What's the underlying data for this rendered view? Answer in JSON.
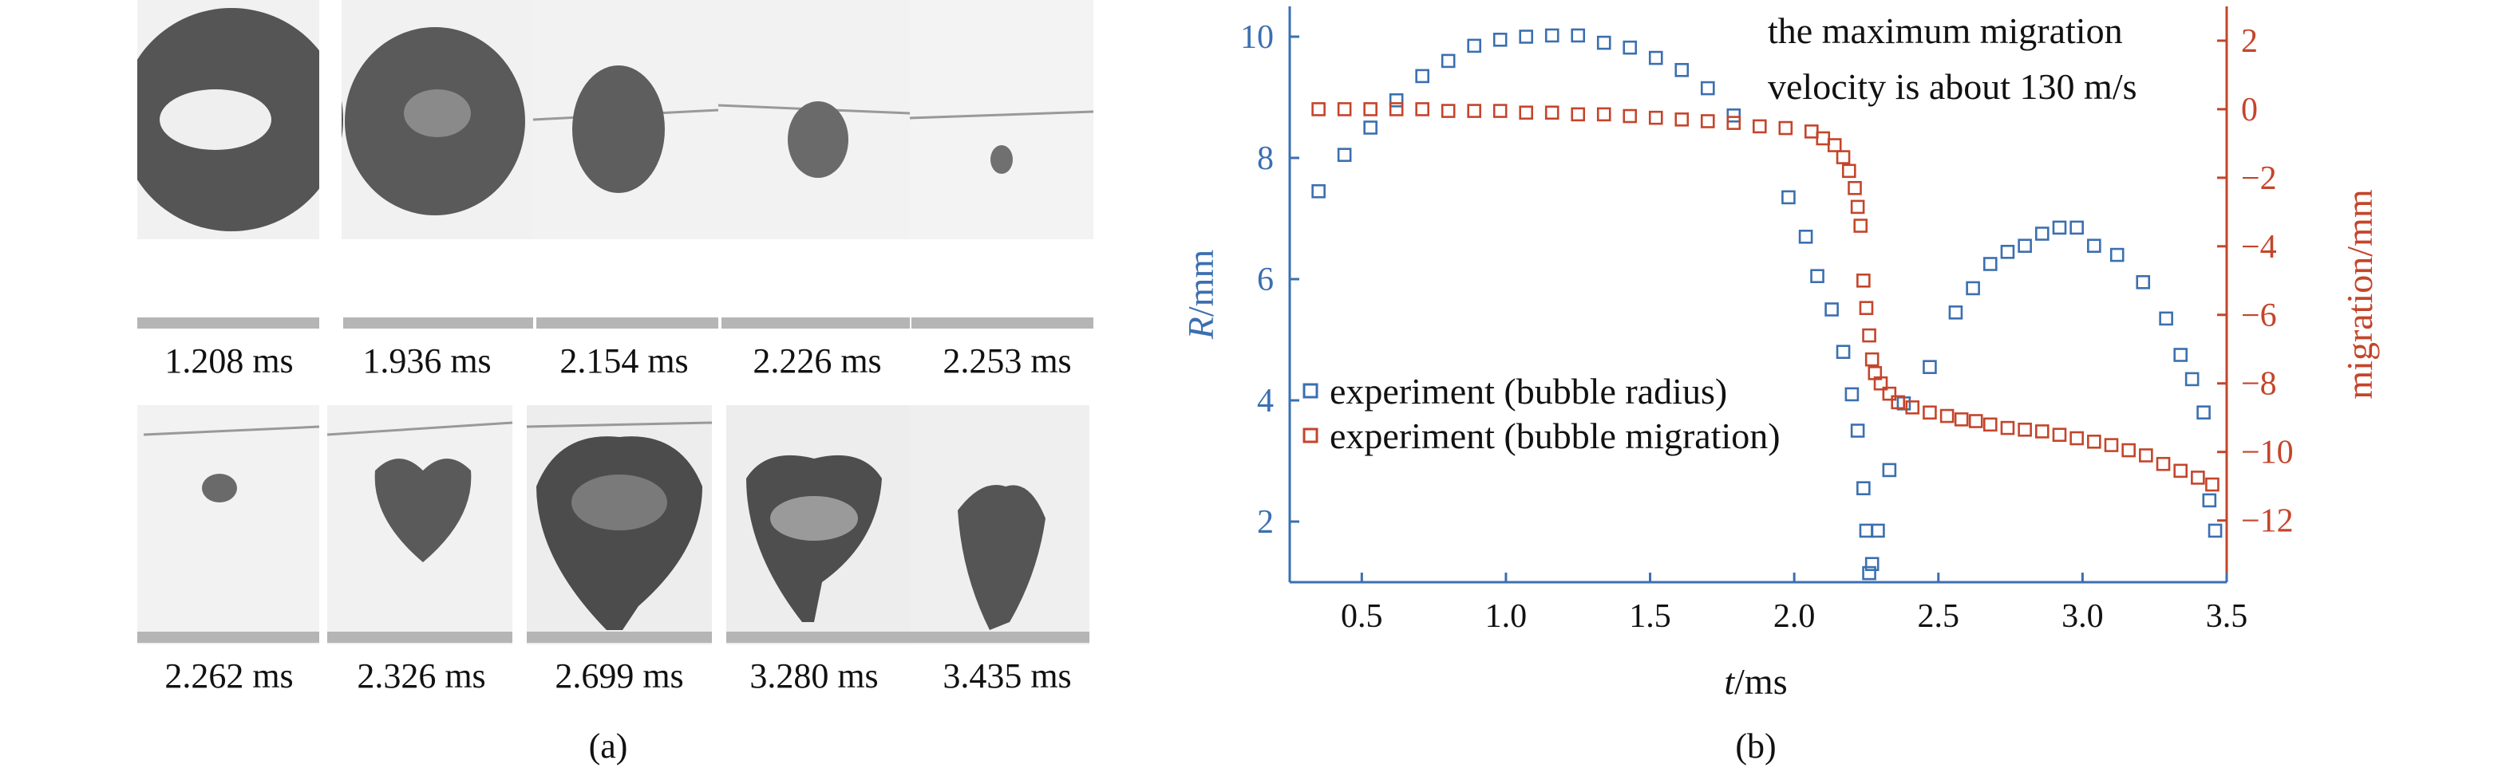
{
  "figure": {
    "panel_a_label": "(a)",
    "panel_b_label": "(b)",
    "frames_row1": [
      "1.208 ms",
      "1.936 ms",
      "2.154 ms",
      "2.226 ms",
      "2.253 ms"
    ],
    "frames_row2": [
      "2.262 ms",
      "2.326 ms",
      "2.699 ms",
      "3.280 ms",
      "3.435 ms"
    ]
  },
  "colors": {
    "radius": "#3b6fb0",
    "migration": "#c4452b",
    "frame_bg": "#f1f1f1",
    "bubble_dark": "#555555"
  },
  "chart_data": {
    "type": "scatter",
    "xlabel": "t/ms",
    "xlabel_italic": "t",
    "xlabel_unit": "/ms",
    "ylabel_left": "R/mm",
    "ylabel_left_italic": "R",
    "ylabel_left_unit": "/mm",
    "ylabel_right": "migration/mm",
    "xlim": [
      0.25,
      3.5
    ],
    "ylim_left": [
      1.0,
      10.5
    ],
    "ylim_right": [
      -13.8,
      3.0
    ],
    "x_ticks": [
      "0.5",
      "1.0",
      "1.5",
      "2.0",
      "2.5",
      "3.0",
      "3.5"
    ],
    "x_tick_values": [
      0.5,
      1.0,
      1.5,
      2.0,
      2.5,
      3.0,
      3.5
    ],
    "y_left_ticks": [
      "2",
      "4",
      "6",
      "8",
      "10"
    ],
    "y_left_tick_values": [
      2,
      4,
      6,
      8,
      10
    ],
    "y_right_ticks": [
      "2",
      "0",
      "−2",
      "−4",
      "−6",
      "−8",
      "−10",
      "−12"
    ],
    "y_right_tick_values": [
      2,
      0,
      -2,
      -4,
      -6,
      -8,
      -10,
      -12
    ],
    "annotation_lines": [
      "the maximum migration",
      "velocity is about 130 m/s"
    ],
    "legend_position": "middle-left",
    "series": [
      {
        "name": "experiment (bubble radius)",
        "axis": "left",
        "marker": "open-square",
        "x": [
          0.35,
          0.44,
          0.53,
          0.62,
          0.71,
          0.8,
          0.89,
          0.98,
          1.07,
          1.16,
          1.25,
          1.34,
          1.43,
          1.52,
          1.61,
          1.7,
          1.79,
          1.98,
          2.04,
          2.08,
          2.13,
          2.17,
          2.2,
          2.22,
          2.24,
          2.25,
          2.26,
          2.27,
          2.29,
          2.33,
          2.38,
          2.47,
          2.56,
          2.62,
          2.68,
          2.74,
          2.8,
          2.86,
          2.92,
          2.98,
          3.04,
          3.12,
          3.21,
          3.29,
          3.34,
          3.38,
          3.42,
          3.44,
          3.46
        ],
        "y": [
          7.45,
          8.05,
          8.5,
          8.95,
          9.35,
          9.6,
          9.85,
          9.95,
          10.0,
          10.02,
          10.02,
          9.9,
          9.82,
          9.65,
          9.45,
          9.15,
          8.7,
          7.35,
          6.7,
          6.05,
          5.5,
          4.8,
          4.1,
          3.5,
          2.55,
          1.85,
          1.15,
          1.3,
          1.85,
          2.85,
          3.95,
          4.55,
          5.45,
          5.85,
          6.25,
          6.45,
          6.55,
          6.75,
          6.85,
          6.85,
          6.55,
          6.4,
          5.95,
          5.35,
          4.75,
          4.35,
          3.8,
          2.35,
          1.85
        ]
      },
      {
        "name": "experiment (bubble migration)",
        "axis": "right",
        "marker": "open-square",
        "x": [
          0.35,
          0.44,
          0.53,
          0.62,
          0.71,
          0.8,
          0.89,
          0.98,
          1.07,
          1.16,
          1.25,
          1.34,
          1.43,
          1.52,
          1.61,
          1.7,
          1.79,
          1.88,
          1.97,
          2.06,
          2.1,
          2.14,
          2.17,
          2.19,
          2.21,
          2.22,
          2.23,
          2.24,
          2.25,
          2.26,
          2.27,
          2.28,
          2.3,
          2.33,
          2.36,
          2.41,
          2.47,
          2.53,
          2.58,
          2.63,
          2.68,
          2.74,
          2.8,
          2.86,
          2.92,
          2.98,
          3.04,
          3.1,
          3.16,
          3.22,
          3.28,
          3.34,
          3.4,
          3.45
        ],
        "y": [
          0.0,
          0.0,
          0.0,
          0.0,
          0.0,
          -0.05,
          -0.05,
          -0.05,
          -0.1,
          -0.1,
          -0.15,
          -0.15,
          -0.2,
          -0.25,
          -0.3,
          -0.35,
          -0.4,
          -0.5,
          -0.55,
          -0.65,
          -0.85,
          -1.05,
          -1.4,
          -1.8,
          -2.3,
          -2.85,
          -3.4,
          -5.0,
          -5.8,
          -6.6,
          -7.3,
          -7.7,
          -8.0,
          -8.3,
          -8.55,
          -8.7,
          -8.85,
          -8.95,
          -9.05,
          -9.1,
          -9.2,
          -9.3,
          -9.35,
          -9.4,
          -9.5,
          -9.6,
          -9.7,
          -9.8,
          -9.95,
          -10.1,
          -10.35,
          -10.55,
          -10.75,
          -10.95
        ]
      }
    ]
  }
}
